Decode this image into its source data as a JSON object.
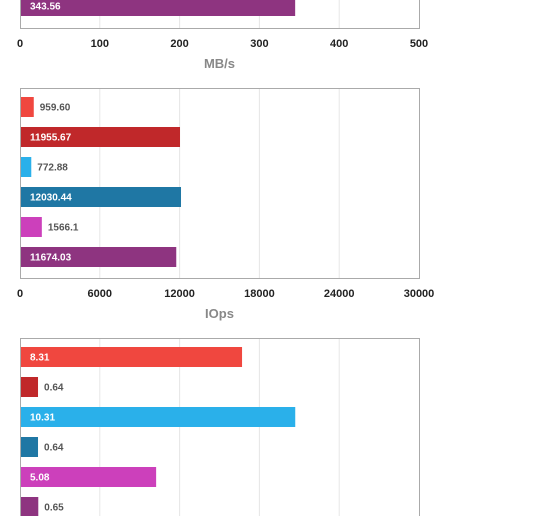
{
  "chart_data": [
    {
      "type": "bar",
      "orientation": "horizontal",
      "xlabel": "MB/s",
      "xlim": [
        0,
        500
      ],
      "ticks": [
        "0",
        "100",
        "200",
        "300",
        "400",
        "500"
      ],
      "bars": [
        {
          "value": 343.56,
          "label": "343.56",
          "color": "#8e3480"
        }
      ]
    },
    {
      "type": "bar",
      "orientation": "horizontal",
      "xlabel": "IOps",
      "xlim": [
        0,
        30000
      ],
      "ticks": [
        "0",
        "6000",
        "12000",
        "18000",
        "24000",
        "30000"
      ],
      "bars": [
        {
          "value": 959.6,
          "label": "959.60",
          "color": "#f0473f"
        },
        {
          "value": 11955.67,
          "label": "11955.67",
          "color": "#c0282a"
        },
        {
          "value": 772.88,
          "label": "772.88",
          "color": "#2ab0ea"
        },
        {
          "value": 12030.44,
          "label": "12030.44",
          "color": "#1f77a4"
        },
        {
          "value": 1566.1,
          "label": "1566.1",
          "color": "#cc40bb"
        },
        {
          "value": 11674.03,
          "label": "11674.03",
          "color": "#8e3480"
        }
      ]
    },
    {
      "type": "bar",
      "orientation": "horizontal",
      "xlabel": "",
      "xlim": [
        0,
        15
      ],
      "ticks": [],
      "bars": [
        {
          "value": 8.31,
          "label": "8.31",
          "color": "#f0473f"
        },
        {
          "value": 0.64,
          "label": "0.64",
          "color": "#c0282a"
        },
        {
          "value": 10.31,
          "label": "10.31",
          "color": "#2ab0ea"
        },
        {
          "value": 0.64,
          "label": "0.64",
          "color": "#1f77a4"
        },
        {
          "value": 5.08,
          "label": "5.08",
          "color": "#cc40bb"
        },
        {
          "value": 0.65,
          "label": "0.65",
          "color": "#8e3480"
        }
      ]
    }
  ]
}
